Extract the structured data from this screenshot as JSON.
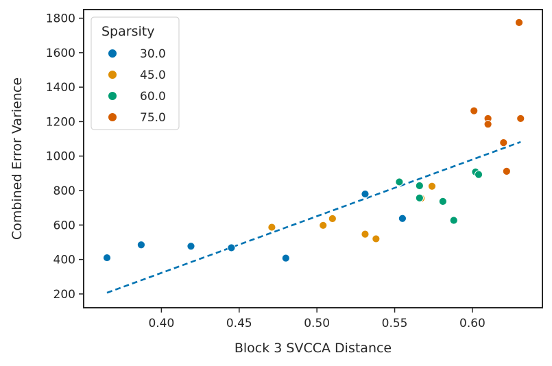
{
  "chart_data": {
    "type": "scatter",
    "title": "",
    "xlabel": "Block 3 SVCCA Distance",
    "ylabel": "Combined Error Varience",
    "xlim": [
      0.35,
      0.645
    ],
    "ylim": [
      120,
      1850
    ],
    "xticks": [
      0.4,
      0.45,
      0.5,
      0.55,
      0.6
    ],
    "xtick_labels": [
      "0.40",
      "0.45",
      "0.50",
      "0.55",
      "0.60"
    ],
    "yticks": [
      200,
      400,
      600,
      800,
      1000,
      1200,
      1400,
      1600,
      1800
    ],
    "ytick_labels": [
      "200",
      "400",
      "600",
      "800",
      "1000",
      "1200",
      "1400",
      "1600",
      "1800"
    ],
    "legend": {
      "title": "Sparsity",
      "placement": "top-left"
    },
    "series": [
      {
        "name": "30.0",
        "color": "#0173b2",
        "points": [
          [
            0.365,
            410
          ],
          [
            0.387,
            485
          ],
          [
            0.419,
            477
          ],
          [
            0.445,
            468
          ],
          [
            0.48,
            408
          ],
          [
            0.531,
            780
          ],
          [
            0.555,
            638
          ]
        ]
      },
      {
        "name": "45.0",
        "color": "#de8f05",
        "points": [
          [
            0.471,
            587
          ],
          [
            0.504,
            598
          ],
          [
            0.51,
            637
          ],
          [
            0.531,
            547
          ],
          [
            0.538,
            520
          ],
          [
            0.567,
            755
          ],
          [
            0.574,
            825
          ]
        ]
      },
      {
        "name": "60.0",
        "color": "#029e73",
        "points": [
          [
            0.553,
            850
          ],
          [
            0.566,
            757
          ],
          [
            0.566,
            828
          ],
          [
            0.581,
            737
          ],
          [
            0.588,
            627
          ],
          [
            0.602,
            908
          ],
          [
            0.604,
            893
          ]
        ]
      },
      {
        "name": "75.0",
        "color": "#d55e00",
        "points": [
          [
            0.601,
            1263
          ],
          [
            0.61,
            1218
          ],
          [
            0.61,
            1185
          ],
          [
            0.62,
            1078
          ],
          [
            0.622,
            912
          ],
          [
            0.63,
            1775
          ],
          [
            0.631,
            1218
          ]
        ]
      }
    ],
    "trendline": {
      "color": "#0173b2",
      "style": "dashed",
      "points": [
        [
          0.365,
          207
        ],
        [
          0.631,
          1082
        ]
      ]
    }
  }
}
